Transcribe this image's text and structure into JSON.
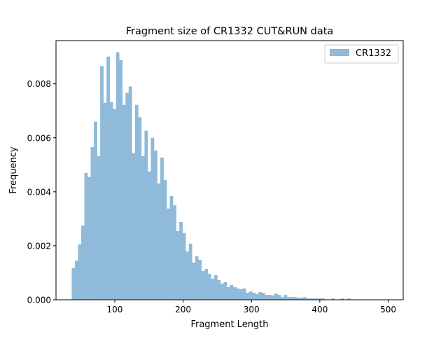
{
  "chart_data": {
    "type": "bar",
    "title": "Fragment size of CR1332 CUT&RUN data",
    "xlabel": "Fragment Length",
    "ylabel": "Frequency",
    "xlim": [
      14,
      522
    ],
    "ylim": [
      0,
      0.0096
    ],
    "x_ticks": [
      100,
      200,
      300,
      400,
      500
    ],
    "y_ticks": [
      0.0,
      0.002,
      0.004,
      0.006,
      0.008
    ],
    "y_tick_labels": [
      "0.000",
      "0.002",
      "0.004",
      "0.006",
      "0.008"
    ],
    "x_tick_labels": [
      "100",
      "200",
      "300",
      "400",
      "500"
    ],
    "bin_range": [
      37,
      500
    ],
    "legend": {
      "placement": "upper-right",
      "entries": [
        "CR1332"
      ]
    },
    "grid": false,
    "series": [
      {
        "name": "CR1332",
        "color": "#8fbad9",
        "values": [
          0.00118,
          0.00145,
          0.00205,
          0.00275,
          0.0047,
          0.00455,
          0.00566,
          0.0066,
          0.00532,
          0.00866,
          0.0073,
          0.00901,
          0.00732,
          0.00707,
          0.00917,
          0.00888,
          0.00722,
          0.00767,
          0.0079,
          0.00543,
          0.00722,
          0.00676,
          0.00532,
          0.00626,
          0.00475,
          0.006,
          0.00553,
          0.00431,
          0.00527,
          0.00444,
          0.00338,
          0.00384,
          0.0035,
          0.00254,
          0.00288,
          0.00247,
          0.00179,
          0.00208,
          0.00138,
          0.00161,
          0.00148,
          0.00106,
          0.00114,
          0.00096,
          0.00078,
          0.00091,
          0.00073,
          0.0006,
          0.00065,
          0.00047,
          0.00055,
          0.00047,
          0.00042,
          0.00039,
          0.00042,
          0.00026,
          0.00031,
          0.00026,
          0.00021,
          0.00029,
          0.00026,
          0.00018,
          0.00018,
          0.00016,
          0.00023,
          0.00018,
          0.0001,
          0.00018,
          0.0001,
          0.0001,
          0.0001,
          8e-05,
          8e-05,
          0.0001,
          5e-05,
          5e-05,
          5e-05,
          5e-05,
          5e-05,
          5e-05,
          0,
          0,
          5e-05,
          0,
          0,
          5e-05,
          0,
          5e-05,
          1e-05,
          1e-05,
          1e-05,
          1e-05,
          1e-05,
          1e-05,
          1e-05,
          1e-05,
          1e-05,
          1e-05,
          1e-05,
          1e-05
        ]
      }
    ]
  }
}
